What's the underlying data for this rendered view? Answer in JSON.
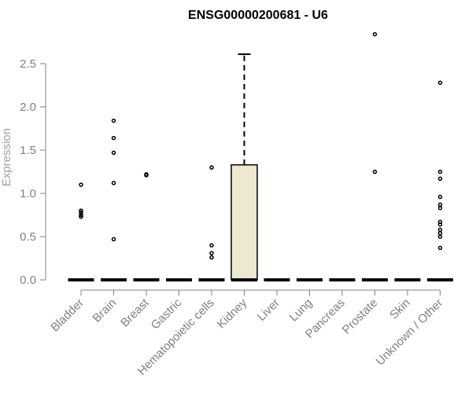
{
  "chart_data": {
    "type": "box",
    "title": "ENSG00000200681 - U6",
    "ylabel": "Expression",
    "xlabel": "",
    "ylim": [
      0,
      2.85
    ],
    "yticks": [
      0.0,
      0.5,
      1.0,
      1.5,
      2.0,
      2.5
    ],
    "ytick_labels": [
      "0.0",
      "0.5",
      "1.0",
      "1.5",
      "2.0",
      "2.5"
    ],
    "grid": false,
    "box_fill": "#ede8cf",
    "categories": [
      "Bladder",
      "Brain",
      "Breast",
      "Gastric",
      "Hematopoietic cells",
      "Kidney",
      "Liver",
      "Lung",
      "Pancreas",
      "Prostate",
      "Skin",
      "Unknown / Other"
    ],
    "boxes": [
      {
        "q1": 0,
        "median": 0,
        "q3": 0,
        "whisker_low": 0,
        "whisker_high": 0,
        "outliers": [
          1.1,
          0.8,
          0.78,
          0.75,
          0.73
        ]
      },
      {
        "q1": 0,
        "median": 0,
        "q3": 0,
        "whisker_low": 0,
        "whisker_high": 0,
        "outliers": [
          1.84,
          1.64,
          1.47,
          1.12,
          0.47
        ]
      },
      {
        "q1": 0,
        "median": 0,
        "q3": 0,
        "whisker_low": 0,
        "whisker_high": 0,
        "outliers": [
          1.22,
          1.21
        ]
      },
      {
        "q1": 0,
        "median": 0,
        "q3": 0,
        "whisker_low": 0,
        "whisker_high": 0,
        "outliers": []
      },
      {
        "q1": 0,
        "median": 0,
        "q3": 0,
        "whisker_low": 0,
        "whisker_high": 0,
        "outliers": [
          1.3,
          0.4,
          0.31,
          0.26
        ]
      },
      {
        "q1": 0,
        "median": 0,
        "q3": 1.33,
        "whisker_low": 0,
        "whisker_high": 2.61,
        "outliers": []
      },
      {
        "q1": 0,
        "median": 0,
        "q3": 0,
        "whisker_low": 0,
        "whisker_high": 0,
        "outliers": []
      },
      {
        "q1": 0,
        "median": 0,
        "q3": 0,
        "whisker_low": 0,
        "whisker_high": 0,
        "outliers": []
      },
      {
        "q1": 0,
        "median": 0,
        "q3": 0,
        "whisker_low": 0,
        "whisker_high": 0,
        "outliers": []
      },
      {
        "q1": 0,
        "median": 0,
        "q3": 0,
        "whisker_low": 0,
        "whisker_high": 0,
        "outliers": [
          2.84,
          1.25
        ]
      },
      {
        "q1": 0,
        "median": 0,
        "q3": 0,
        "whisker_low": 0,
        "whisker_high": 0,
        "outliers": []
      },
      {
        "q1": 0,
        "median": 0,
        "q3": 0,
        "whisker_low": 0,
        "whisker_high": 0,
        "outliers": [
          2.28,
          1.25,
          1.17,
          0.96,
          0.87,
          0.83,
          0.67,
          0.64,
          0.58,
          0.54,
          0.5,
          0.37
        ]
      }
    ]
  }
}
